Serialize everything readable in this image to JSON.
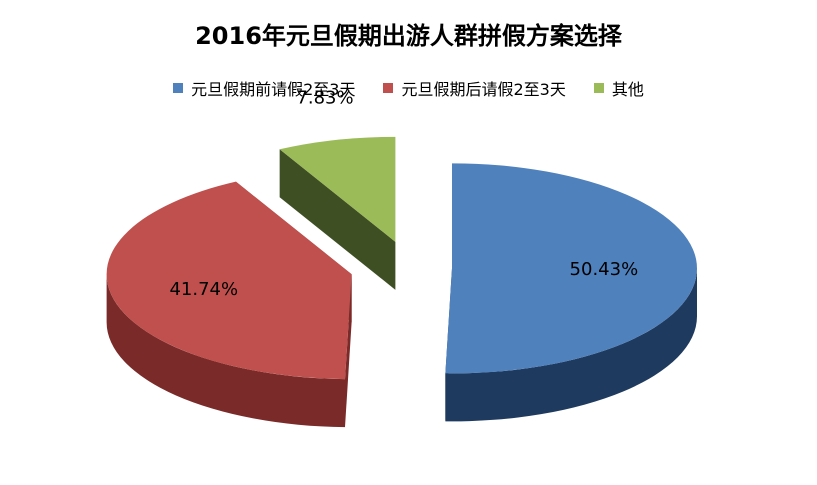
{
  "chart_data": {
    "type": "pie",
    "title": "2016年元旦假期出游人群拼假方案选择",
    "categories": [
      "元旦假期前请假2至3天",
      "元旦假期后请假2至3天",
      "其他"
    ],
    "values": [
      50.43,
      41.74,
      7.83
    ],
    "labels": [
      "50.43%",
      "41.74%",
      "7.83%"
    ],
    "colors": [
      "#4F81BD",
      "#C0504D",
      "#9BBB59"
    ],
    "side_colors": [
      "#1F3A5F",
      "#7A2A28",
      "#3E5023"
    ],
    "legend_position": "top",
    "style": "3d-exploded"
  }
}
